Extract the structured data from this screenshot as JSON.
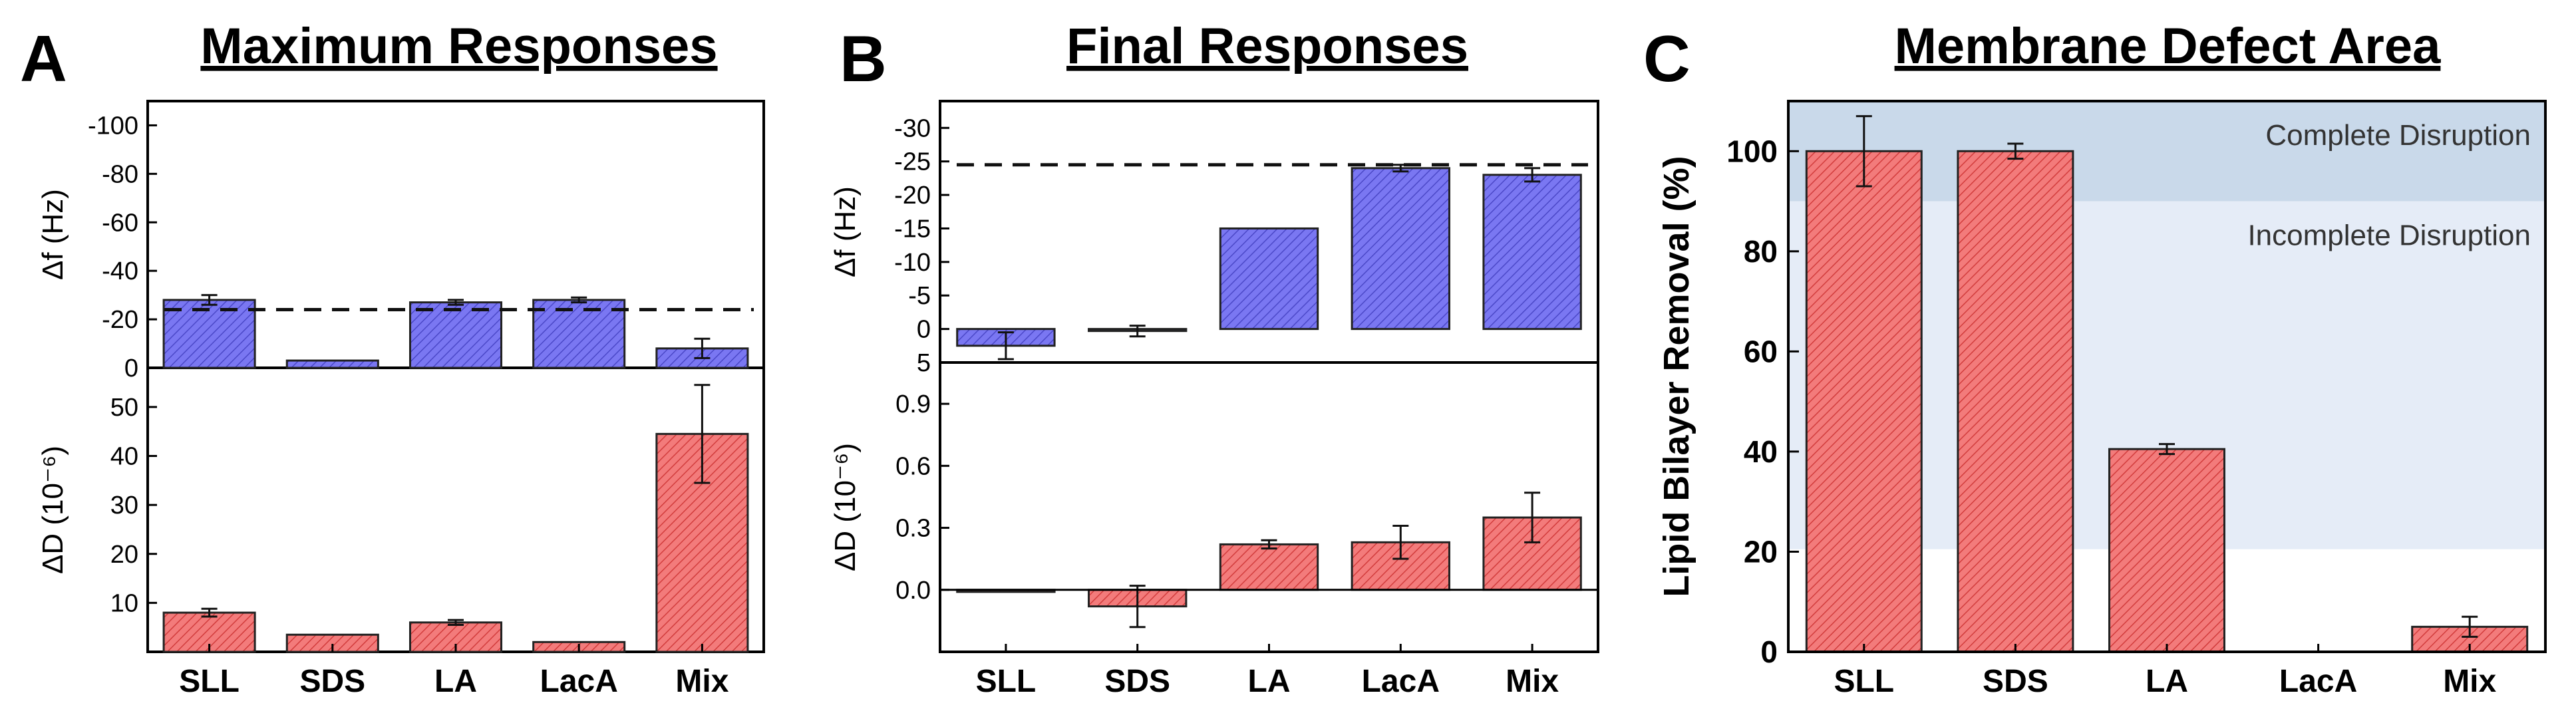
{
  "chart_data": [
    {
      "panel": "A",
      "type": "bar",
      "title": "Maximum Responses",
      "categories": [
        "SLL",
        "SDS",
        "LA",
        "LacA",
        "Mix"
      ],
      "top": {
        "ylabel": "Δf (Hz)",
        "ylim": [
          0,
          -110
        ],
        "yticks": [
          0,
          -20,
          -40,
          -60,
          -80,
          -100
        ],
        "ytick_labels": [
          "0",
          "-20",
          "-40",
          "-60",
          "-80",
          "-100"
        ],
        "values": [
          -28,
          -3,
          -27,
          -28,
          -8
        ],
        "errors": [
          2,
          0,
          1,
          1,
          4
        ],
        "reference_line": -24,
        "color": "#6f6cf0"
      },
      "bottom": {
        "ylabel": "ΔD (10⁻⁶)",
        "ylim": [
          0,
          58
        ],
        "yticks": [
          10,
          20,
          30,
          40,
          50
        ],
        "ytick_labels": [
          "10",
          "20",
          "30",
          "40",
          "50"
        ],
        "values": [
          8,
          3.5,
          6,
          2,
          44.5
        ],
        "errors": [
          0.8,
          0,
          0.5,
          0,
          10
        ],
        "color": "#f26a6a"
      }
    },
    {
      "panel": "B",
      "type": "bar",
      "title": "Final Responses",
      "categories": [
        "SLL",
        "SDS",
        "LA",
        "LacA",
        "Mix"
      ],
      "top": {
        "ylabel": "Δf (Hz)",
        "ylim": [
          5,
          -34
        ],
        "yticks": [
          5,
          0,
          -5,
          -10,
          -15,
          -20,
          -25,
          -30
        ],
        "ytick_labels": [
          "5",
          "0",
          "-5",
          "-10",
          "-15",
          "-20",
          "-25",
          "-30"
        ],
        "values": [
          2.5,
          0.3,
          -15,
          -24,
          -23
        ],
        "errors": [
          2,
          0.8,
          0,
          0.5,
          1
        ],
        "reference_line": -24.5,
        "color": "#6f6cf0"
      },
      "bottom": {
        "ylabel": "ΔD (10⁻⁶)",
        "ylim": [
          -0.3,
          1.1
        ],
        "yticks": [
          0.0,
          0.3,
          0.6,
          0.9
        ],
        "ytick_labels": [
          "0.0",
          "0.3",
          "0.6",
          "0.9"
        ],
        "values": [
          -0.01,
          -0.08,
          0.22,
          0.23,
          0.35
        ],
        "errors": [
          0,
          0.1,
          0.02,
          0.08,
          0.12
        ],
        "color": "#f26a6a"
      }
    },
    {
      "panel": "C",
      "type": "bar",
      "title": "Membrane Defect Area",
      "categories": [
        "SLL",
        "SDS",
        "LA",
        "LacA",
        "Mix"
      ],
      "ylabel": "Lipid Bilayer Removal (%)",
      "ylim": [
        0,
        110
      ],
      "yticks": [
        0,
        20,
        40,
        60,
        80,
        100
      ],
      "ytick_labels": [
        "0",
        "20",
        "40",
        "60",
        "80",
        "100"
      ],
      "values": [
        100,
        100,
        40.5,
        0,
        5
      ],
      "errors": [
        7,
        1.5,
        1,
        0,
        2
      ],
      "color": "#f26a6a",
      "regions": [
        {
          "label": "Complete Disruption",
          "from": 90,
          "to": 110,
          "color": "#c9d9ea"
        },
        {
          "label": "Incomplete Disruption",
          "from": 20.5,
          "to": 90,
          "color": "#e5ecf7"
        }
      ]
    }
  ]
}
